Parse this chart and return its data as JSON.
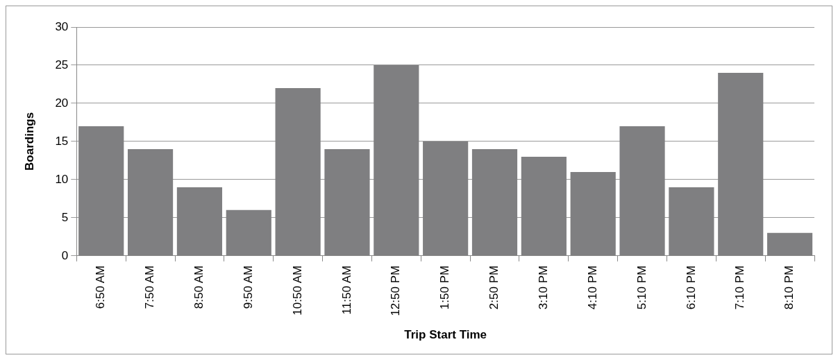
{
  "chart_data": {
    "type": "bar",
    "xlabel": "Trip Start Time",
    "ylabel": "Boardings",
    "categories": [
      "6:50 AM",
      "7:50 AM",
      "8:50 AM",
      "9:50 AM",
      "10:50 AM",
      "11:50 AM",
      "12:50 PM",
      "1:50 PM",
      "2:50 PM",
      "3:10 PM",
      "4:10 PM",
      "5:10 PM",
      "6:10 PM",
      "7:10 PM",
      "8:10 PM"
    ],
    "values": [
      17,
      14,
      9,
      6,
      22,
      14,
      25,
      15,
      14,
      13,
      11,
      17,
      9,
      24,
      3
    ],
    "color": "#7f7f81",
    "ylim": [
      0,
      30
    ],
    "yticks": [
      0,
      5,
      10,
      15,
      20,
      25,
      30
    ],
    "grid": "y",
    "legend": false
  }
}
